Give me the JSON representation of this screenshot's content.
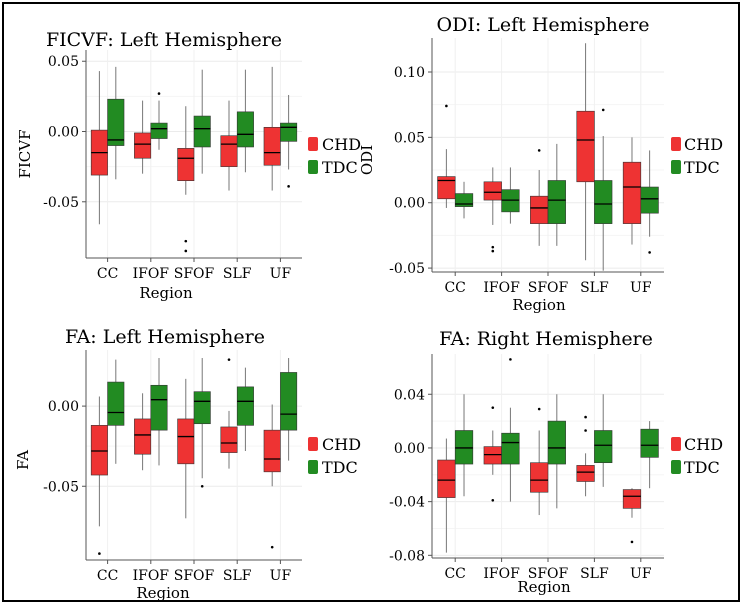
{
  "figure": {
    "background": "#ffffff",
    "colors": {
      "CHD": "#ee3333",
      "TDC": "#228b22"
    }
  },
  "chart_data": [
    {
      "type": "boxplot",
      "title": "FICVF: Left Hemisphere",
      "xlabel": "Region",
      "ylabel": "FICVF",
      "ylim": [
        -0.09,
        0.058
      ],
      "yticks": [
        0.05,
        0.0,
        -0.05
      ],
      "ytick_labels": [
        "0.05",
        "0.00",
        "-0.05"
      ],
      "categories": [
        "CC",
        "IFOF",
        "SFOF",
        "SLF",
        "UF"
      ],
      "legend": {
        "title": "",
        "position": "right",
        "entries": [
          "CHD",
          "TDC"
        ]
      },
      "series": [
        {
          "name": "CHD",
          "boxes": [
            {
              "min": -0.066,
              "q1": -0.031,
              "median": -0.015,
              "q3": 0.001,
              "max": 0.043,
              "outliers": []
            },
            {
              "min": -0.03,
              "q1": -0.019,
              "median": -0.009,
              "q3": -0.001,
              "max": 0.022,
              "outliers": []
            },
            {
              "min": -0.045,
              "q1": -0.035,
              "median": -0.019,
              "q3": -0.012,
              "max": 0.018,
              "outliers": [
                -0.078,
                -0.085
              ]
            },
            {
              "min": -0.042,
              "q1": -0.025,
              "median": -0.009,
              "q3": -0.003,
              "max": 0.022,
              "outliers": []
            },
            {
              "min": -0.042,
              "q1": -0.024,
              "median": -0.015,
              "q3": 0.003,
              "max": 0.046,
              "outliers": []
            }
          ]
        },
        {
          "name": "TDC",
          "boxes": [
            {
              "min": -0.034,
              "q1": -0.01,
              "median": -0.006,
              "q3": 0.023,
              "max": 0.046,
              "outliers": []
            },
            {
              "min": -0.013,
              "q1": -0.005,
              "median": 0.002,
              "q3": 0.006,
              "max": 0.022,
              "outliers": [
                0.027
              ]
            },
            {
              "min": -0.03,
              "q1": -0.011,
              "median": 0.002,
              "q3": 0.011,
              "max": 0.044,
              "outliers": []
            },
            {
              "min": -0.029,
              "q1": -0.011,
              "median": -0.002,
              "q3": 0.014,
              "max": 0.044,
              "outliers": []
            },
            {
              "min": -0.027,
              "q1": -0.007,
              "median": 0.003,
              "q3": 0.006,
              "max": 0.026,
              "outliers": [
                -0.039
              ]
            }
          ]
        }
      ]
    },
    {
      "type": "boxplot",
      "title": "ODI: Left Hemisphere",
      "xlabel": "Region",
      "ylabel": "ODI",
      "ylim": [
        -0.053,
        0.126
      ],
      "yticks": [
        0.1,
        0.05,
        0.0,
        -0.05
      ],
      "ytick_labels": [
        "0.10",
        "0.05",
        "0.00",
        "-0.05"
      ],
      "categories": [
        "CC",
        "IFOF",
        "SFOF",
        "SLF",
        "UF"
      ],
      "legend": {
        "title": "",
        "position": "right",
        "entries": [
          "CHD",
          "TDC"
        ]
      },
      "series": [
        {
          "name": "CHD",
          "boxes": [
            {
              "min": -0.004,
              "q1": 0.003,
              "median": 0.017,
              "q3": 0.02,
              "max": 0.041,
              "outliers": [
                0.074
              ]
            },
            {
              "min": -0.017,
              "q1": 0.002,
              "median": 0.008,
              "q3": 0.016,
              "max": 0.027,
              "outliers": [
                -0.034,
                -0.037
              ]
            },
            {
              "min": -0.033,
              "q1": -0.016,
              "median": -0.004,
              "q3": 0.005,
              "max": 0.025,
              "outliers": [
                0.04
              ]
            },
            {
              "min": -0.044,
              "q1": 0.016,
              "median": 0.048,
              "q3": 0.07,
              "max": 0.122,
              "outliers": []
            },
            {
              "min": -0.032,
              "q1": -0.016,
              "median": 0.012,
              "q3": 0.031,
              "max": 0.05,
              "outliers": []
            }
          ]
        },
        {
          "name": "TDC",
          "boxes": [
            {
              "min": -0.012,
              "q1": -0.003,
              "median": -0.001,
              "q3": 0.007,
              "max": 0.016,
              "outliers": []
            },
            {
              "min": -0.016,
              "q1": -0.007,
              "median": 0.002,
              "q3": 0.01,
              "max": 0.027,
              "outliers": []
            },
            {
              "min": -0.033,
              "q1": -0.016,
              "median": 0.002,
              "q3": 0.017,
              "max": 0.045,
              "outliers": []
            },
            {
              "min": -0.052,
              "q1": -0.016,
              "median": -0.001,
              "q3": 0.017,
              "max": 0.051,
              "outliers": [
                0.071
              ]
            },
            {
              "min": -0.026,
              "q1": -0.008,
              "median": 0.003,
              "q3": 0.012,
              "max": 0.04,
              "outliers": [
                -0.038
              ]
            }
          ]
        }
      ]
    },
    {
      "type": "boxplot",
      "title": "FA: Left Hemisphere",
      "xlabel": "Region",
      "ylabel": "FA",
      "ylim": [
        -0.096,
        0.035
      ],
      "yticks": [
        0.0,
        -0.05
      ],
      "ytick_labels": [
        "0.00",
        "-0.05"
      ],
      "categories": [
        "CC",
        "IFOF",
        "SFOF",
        "SLF",
        "UF"
      ],
      "legend": {
        "title": "",
        "position": "right",
        "entries": [
          "CHD",
          "TDC"
        ]
      },
      "series": [
        {
          "name": "CHD",
          "boxes": [
            {
              "min": -0.075,
              "q1": -0.043,
              "median": -0.028,
              "q3": -0.012,
              "max": 0.006,
              "outliers": [
                -0.092
              ]
            },
            {
              "min": -0.04,
              "q1": -0.03,
              "median": -0.018,
              "q3": -0.008,
              "max": 0.008,
              "outliers": []
            },
            {
              "min": -0.07,
              "q1": -0.036,
              "median": -0.019,
              "q3": -0.008,
              "max": 0.017,
              "outliers": []
            },
            {
              "min": -0.039,
              "q1": -0.029,
              "median": -0.023,
              "q3": -0.013,
              "max": -0.003,
              "outliers": [
                0.029
              ]
            },
            {
              "min": -0.05,
              "q1": -0.041,
              "median": -0.033,
              "q3": -0.015,
              "max": 0.001,
              "outliers": [
                -0.088
              ]
            }
          ]
        },
        {
          "name": "TDC",
          "boxes": [
            {
              "min": -0.036,
              "q1": -0.012,
              "median": -0.004,
              "q3": 0.015,
              "max": 0.029,
              "outliers": []
            },
            {
              "min": -0.037,
              "q1": -0.015,
              "median": 0.004,
              "q3": 0.013,
              "max": 0.03,
              "outliers": []
            },
            {
              "min": -0.045,
              "q1": -0.011,
              "median": 0.003,
              "q3": 0.009,
              "max": 0.03,
              "outliers": [
                -0.05
              ]
            },
            {
              "min": -0.028,
              "q1": -0.012,
              "median": 0.003,
              "q3": 0.012,
              "max": 0.024,
              "outliers": []
            },
            {
              "min": -0.034,
              "q1": -0.015,
              "median": -0.005,
              "q3": 0.021,
              "max": 0.03,
              "outliers": []
            }
          ]
        }
      ]
    },
    {
      "type": "boxplot",
      "title": "FA: Right Hemisphere",
      "xlabel": "Region",
      "ylabel": "",
      "ylim": [
        -0.082,
        0.07
      ],
      "yticks": [
        0.04,
        0.0,
        -0.04,
        -0.08
      ],
      "ytick_labels": [
        "0.04",
        "0.00",
        "-0.04",
        "-0.08"
      ],
      "categories": [
        "CC",
        "IFOF",
        "SFOF",
        "SLF",
        "UF"
      ],
      "legend": {
        "title": "",
        "position": "right",
        "entries": [
          "CHD",
          "TDC"
        ]
      },
      "series": [
        {
          "name": "CHD",
          "boxes": [
            {
              "min": -0.078,
              "q1": -0.037,
              "median": -0.024,
              "q3": -0.009,
              "max": 0.007,
              "outliers": []
            },
            {
              "min": -0.02,
              "q1": -0.012,
              "median": -0.005,
              "q3": 0.001,
              "max": 0.013,
              "outliers": [
                0.03,
                -0.039
              ]
            },
            {
              "min": -0.05,
              "q1": -0.033,
              "median": -0.024,
              "q3": -0.011,
              "max": 0.013,
              "outliers": [
                0.029
              ]
            },
            {
              "min": -0.036,
              "q1": -0.025,
              "median": -0.018,
              "q3": -0.013,
              "max": -0.004,
              "outliers": [
                0.023,
                0.013
              ]
            },
            {
              "min": -0.052,
              "q1": -0.045,
              "median": -0.036,
              "q3": -0.031,
              "max": -0.03,
              "outliers": [
                -0.07
              ]
            }
          ]
        },
        {
          "name": "TDC",
          "boxes": [
            {
              "min": -0.036,
              "q1": -0.012,
              "median": 0.0,
              "q3": 0.013,
              "max": 0.04,
              "outliers": []
            },
            {
              "min": -0.04,
              "q1": -0.012,
              "median": 0.004,
              "q3": 0.011,
              "max": 0.03,
              "outliers": [
                0.066
              ]
            },
            {
              "min": -0.045,
              "q1": -0.012,
              "median": 0.0,
              "q3": 0.02,
              "max": 0.04,
              "outliers": []
            },
            {
              "min": -0.029,
              "q1": -0.011,
              "median": 0.002,
              "q3": 0.013,
              "max": 0.04,
              "outliers": []
            },
            {
              "min": -0.03,
              "q1": -0.007,
              "median": 0.002,
              "q3": 0.014,
              "max": 0.02,
              "outliers": []
            }
          ]
        }
      ]
    }
  ]
}
